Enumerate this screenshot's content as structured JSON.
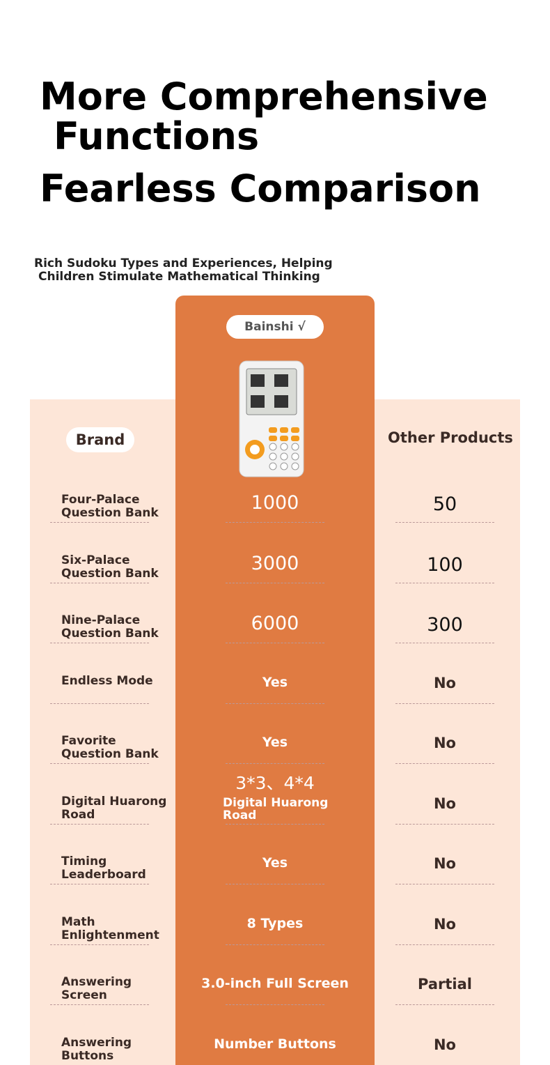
{
  "header": {
    "title_lines": [
      "More Comprehensive",
      "Functions",
      "Fearless Comparison"
    ],
    "subtitle_lines": [
      "Rich Sudoku Types and Experiences, Helping",
      "Children Stimulate Mathematical Thinking"
    ]
  },
  "table": {
    "brand_name": "Bainshi √",
    "left_header": "Brand",
    "right_header": "Other Products",
    "rows": [
      {
        "label": "Four-Palace Question Bank",
        "brand": "1000",
        "other": "50"
      },
      {
        "label": "Six-Palace Question Bank",
        "brand": "3000",
        "other": "100"
      },
      {
        "label": "Nine-Palace Question Bank",
        "brand": "6000",
        "other": "300"
      },
      {
        "label": "Endless Mode",
        "brand": "Yes",
        "other": "No"
      },
      {
        "label": "Favorite Question Bank",
        "brand": "Yes",
        "other": "No"
      },
      {
        "label": "Digital Huarong Road",
        "brand": "3*3、4*4",
        "brand_detail": "Digital Huarong Road",
        "other": "No"
      },
      {
        "label": "Timing Leaderboard",
        "brand": "Yes",
        "other": "No"
      },
      {
        "label": "Math Enlightenment",
        "brand": "8 Types",
        "other": "No"
      },
      {
        "label": "Answering Screen",
        "brand": "3.0-inch Full Screen",
        "other": "Partial"
      },
      {
        "label": "Answering Buttons",
        "brand": "Number Buttons",
        "other": "No"
      }
    ]
  }
}
